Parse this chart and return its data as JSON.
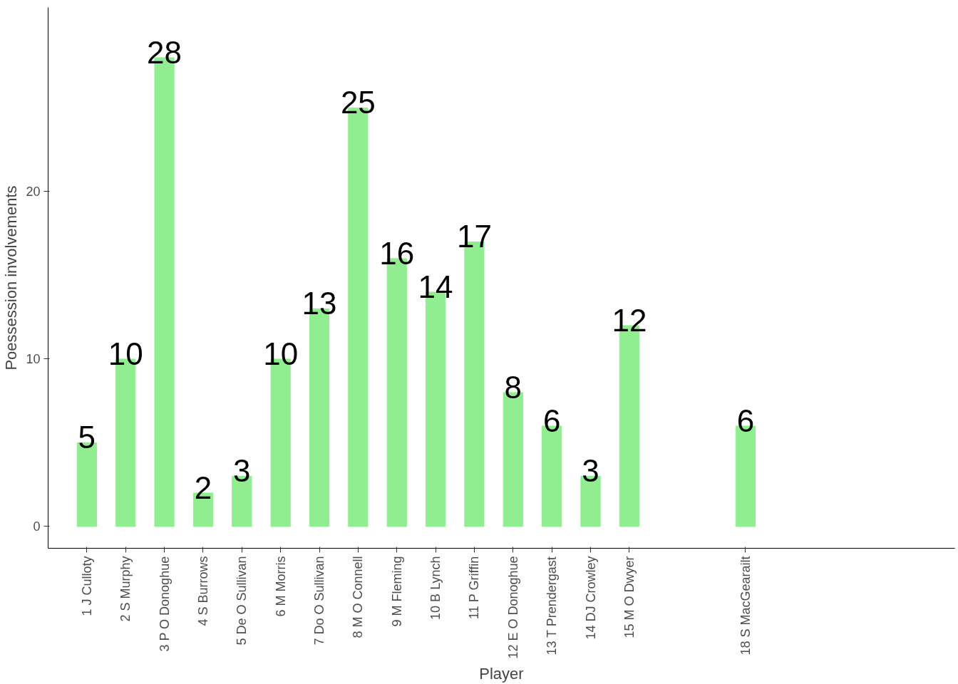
{
  "chart_data": {
    "type": "bar",
    "xlabel": "Player",
    "ylabel": "Poessession involvements",
    "x": [
      1,
      2,
      3,
      4,
      5,
      6,
      7,
      8,
      9,
      10,
      11,
      12,
      13,
      14,
      15,
      18
    ],
    "values": [
      5,
      10,
      28,
      2,
      3,
      10,
      13,
      25,
      16,
      14,
      17,
      8,
      6,
      3,
      12,
      6
    ],
    "color": "#90ee90",
    "data_labels": true,
    "grid": false,
    "xlim": [
      0,
      23.4
    ],
    "ylim": [
      -1.3,
      31
    ],
    "xticks": [
      {
        "value": 1,
        "label": "1 J Culloty"
      },
      {
        "value": 2,
        "label": "2 S Murphy"
      },
      {
        "value": 3,
        "label": "3 P O Donoghue"
      },
      {
        "value": 4,
        "label": "4 S Burrows"
      },
      {
        "value": 5,
        "label": "5 De O Sullivan"
      },
      {
        "value": 6,
        "label": "6 M Morris"
      },
      {
        "value": 7,
        "label": "7 Do O Sullivan"
      },
      {
        "value": 8,
        "label": "8 M O Connell"
      },
      {
        "value": 9,
        "label": "9 M Fleming"
      },
      {
        "value": 10,
        "label": "10 B Lynch"
      },
      {
        "value": 11,
        "label": "11 P Griffin"
      },
      {
        "value": 12,
        "label": "12 E O Donoghue"
      },
      {
        "value": 13,
        "label": "13 T Prendergast"
      },
      {
        "value": 14,
        "label": "14 DJ Crowley"
      },
      {
        "value": 15,
        "label": "15 M O Dwyer"
      },
      {
        "value": 18,
        "label": "18 S MacGearailt"
      }
    ],
    "yticks": [
      0,
      10,
      20
    ]
  }
}
